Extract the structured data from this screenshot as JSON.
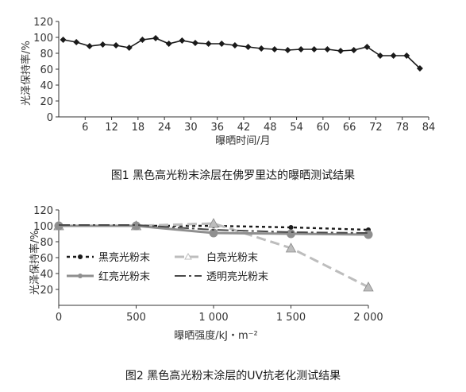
{
  "chart_data": [
    {
      "type": "line",
      "caption": "图1 黑色高光粉末涂层在佛罗里达的曝晒测试结果",
      "xlabel": "曝晒时间/月",
      "ylabel": "光泽保持率/%",
      "xlim": [
        0,
        84
      ],
      "ylim": [
        0,
        120
      ],
      "xticks": [
        6,
        12,
        18,
        24,
        30,
        36,
        42,
        48,
        54,
        60,
        66,
        72,
        78,
        84
      ],
      "yticks": [
        0,
        20,
        40,
        60,
        80,
        100,
        120
      ],
      "grid": false,
      "legend": "none",
      "color": "#1a1a1a",
      "marker": "diamond",
      "series": [
        {
          "x": [
            1,
            4,
            7,
            10,
            13,
            16,
            19,
            22,
            25,
            28,
            31,
            34,
            37,
            40,
            43,
            46,
            49,
            52,
            55,
            58,
            61,
            64,
            67,
            70,
            73,
            76,
            79,
            82
          ],
          "y": [
            97,
            94,
            89,
            91,
            90,
            87,
            97,
            99,
            92,
            96,
            93,
            92,
            92,
            90,
            88,
            86,
            85,
            84,
            85,
            85,
            85,
            83,
            84,
            88,
            77,
            77,
            77,
            61
          ]
        }
      ]
    },
    {
      "type": "line",
      "caption": "图2 黑色高光粉末涂层的UV抗老化测试结果",
      "xlabel": "曝晒强度/kJ・m⁻²",
      "ylabel": "光泽保持率/%",
      "xlim": [
        0,
        2000
      ],
      "ylim": [
        0,
        120
      ],
      "xticks": [
        0,
        500,
        1000,
        1500,
        2000
      ],
      "xticklabels": [
        "0",
        "500",
        "1 000",
        "1 500",
        "2 000"
      ],
      "yticks": [
        20,
        40,
        60,
        80,
        100,
        120
      ],
      "grid": false,
      "legend": "inside-left",
      "series": [
        {
          "name": "黑亮光粉末",
          "color": "#1a1a1a",
          "dash": "short",
          "marker": "dot",
          "x": [
            0,
            500,
            1000,
            1500,
            2000
          ],
          "y": [
            100,
            100,
            100,
            98,
            95
          ]
        },
        {
          "name": "白亮光粉末",
          "color": "#bdbdbd",
          "dash": "long",
          "marker": "triangle",
          "x": [
            0,
            500,
            1000,
            1500,
            2000
          ],
          "y": [
            100,
            100,
            103,
            72,
            23
          ]
        },
        {
          "name": "红亮光粉末",
          "color": "#8f8f8f",
          "dash": "solid",
          "marker": "circle",
          "x": [
            0,
            500,
            1000,
            1500,
            2000
          ],
          "y": [
            100,
            100,
            91,
            90,
            89
          ]
        },
        {
          "name": "透明亮光粉末",
          "color": "#4a4a4a",
          "dash": "dashdot",
          "marker": "none",
          "x": [
            0,
            500,
            1000,
            1500,
            2000
          ],
          "y": [
            101,
            101,
            95,
            92,
            91
          ]
        }
      ]
    }
  ]
}
